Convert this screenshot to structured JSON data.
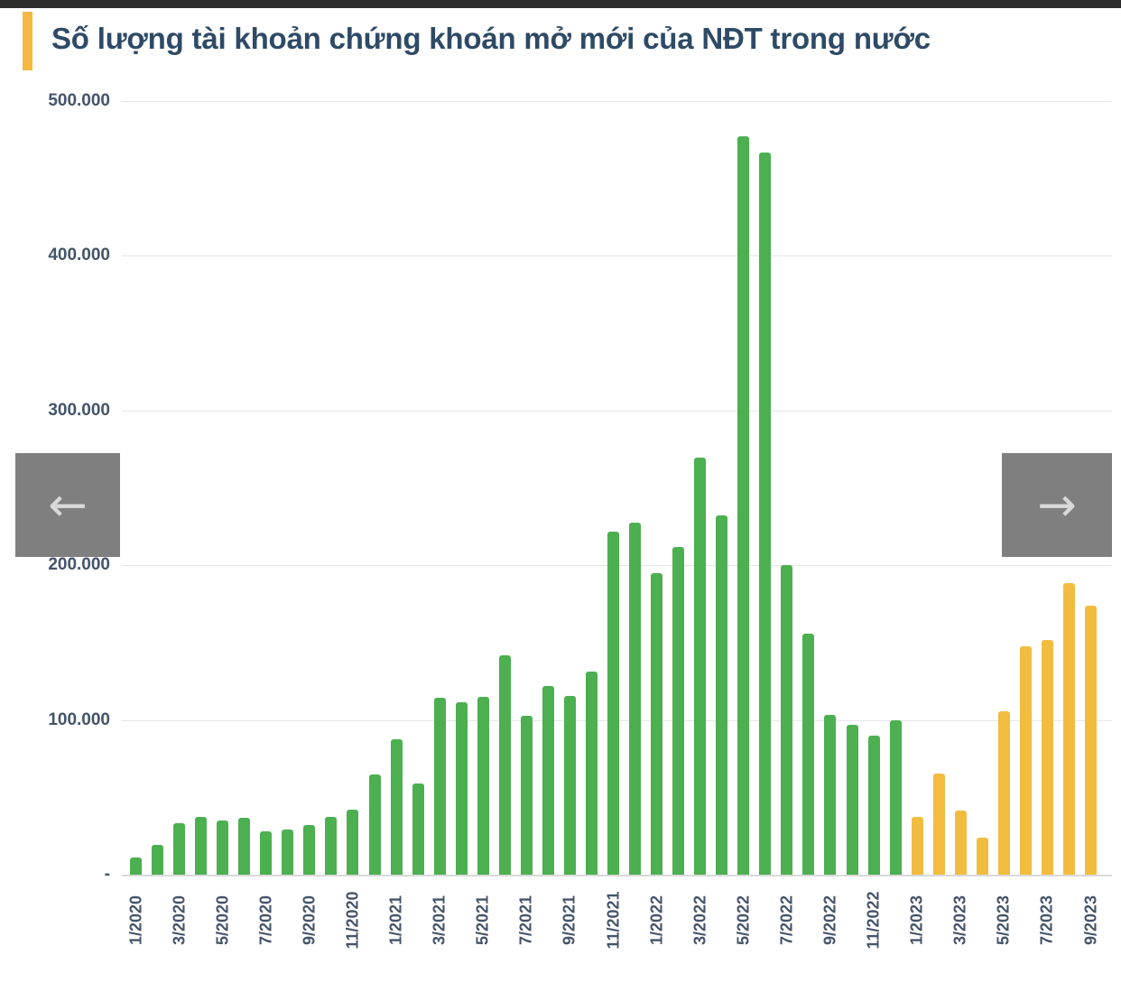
{
  "page": {
    "top_strip_color": "#2D2D2D",
    "background": "#FFFFFF"
  },
  "header": {
    "title": "Số lượng tài khoản chứng khoán mở mới của NĐT trong nước",
    "accent_color": "#F5B942",
    "title_color": "#2E4A66"
  },
  "nav": {
    "prev_symbol": "←",
    "next_symbol": "→",
    "button_bg": "#7F7F7F",
    "arrow_color": "#D9D9D9"
  },
  "colors": {
    "bar_green": "#4CAF50",
    "bar_yellow": "#F1BC40",
    "axis_text": "#44546A",
    "gridline": "#E6E6E6",
    "baseline": "#D9D9D9"
  },
  "chart_data": {
    "type": "bar",
    "title": "Số lượng tài khoản chứng khoán mở mới của NĐT trong nước",
    "categories": [
      "1/2020",
      "2/2020",
      "3/2020",
      "4/2020",
      "5/2020",
      "6/2020",
      "7/2020",
      "8/2020",
      "9/2020",
      "10/2020",
      "11/2020",
      "12/2020",
      "1/2021",
      "2/2021",
      "3/2021",
      "4/2021",
      "5/2021",
      "6/2021",
      "7/2021",
      "8/2021",
      "9/2021",
      "10/2021",
      "11/2021",
      "12/2021",
      "1/2022",
      "2/2022",
      "3/2022",
      "4/2022",
      "5/2022",
      "6/2022",
      "7/2022",
      "8/2022",
      "9/2022",
      "10/2022",
      "11/2022",
      "12/2022",
      "1/2023",
      "2/2023",
      "3/2023",
      "4/2023",
      "5/2023",
      "6/2023",
      "7/2023",
      "8/2023",
      "9/2023"
    ],
    "values": [
      11000,
      19500,
      33000,
      37500,
      35000,
      36500,
      28000,
      29000,
      32000,
      37500,
      42000,
      65000,
      87500,
      59000,
      114500,
      111500,
      115000,
      141500,
      102500,
      122000,
      115500,
      131000,
      221500,
      227500,
      195000,
      212000,
      269500,
      232000,
      477500,
      466500,
      200000,
      155500,
      103500,
      97000,
      90000,
      100000,
      37500,
      65500,
      41500,
      24000,
      105500,
      147500,
      151500,
      188500,
      174000
    ],
    "color_rule": {
      "years_2020_2022": "#4CAF50",
      "year_2023": "#F1BC40"
    },
    "ylim": [
      0,
      500000
    ],
    "y_tick_labels": [
      "500.000",
      "400.000",
      "300.000",
      "200.000",
      "100.000",
      "-"
    ],
    "x_tick_labels_shown": [
      "1/2020",
      "3/2020",
      "5/2020",
      "7/2020",
      "9/2020",
      "11/2020",
      "1/2021",
      "3/2021",
      "5/2021",
      "7/2021",
      "9/2021",
      "11/2021",
      "1/2022",
      "3/2022",
      "5/2022",
      "7/2022",
      "9/2022",
      "11/2022",
      "1/2023",
      "3/2023",
      "5/2023",
      "7/2023",
      "9/2023"
    ],
    "grid": true,
    "legend": false,
    "xlabel": "",
    "ylabel": ""
  }
}
